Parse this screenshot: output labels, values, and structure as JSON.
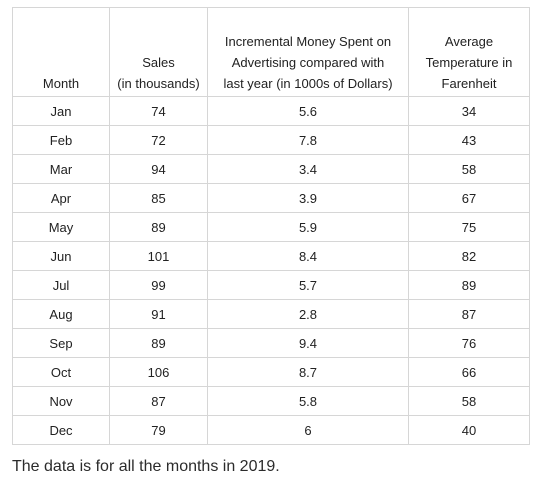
{
  "table": {
    "headers": [
      [
        "Month"
      ],
      [
        "Sales",
        "(in thousands)"
      ],
      [
        "Incremental Money Spent on",
        "Advertising compared with",
        "last year (in 1000s of Dollars)"
      ],
      [
        "Average",
        "Temperature in",
        "Farenheit"
      ]
    ],
    "rows": [
      [
        "Jan",
        "74",
        "5.6",
        "34"
      ],
      [
        "Feb",
        "72",
        "7.8",
        "43"
      ],
      [
        "Mar",
        "94",
        "3.4",
        "58"
      ],
      [
        "Apr",
        "85",
        "3.9",
        "67"
      ],
      [
        "May",
        "89",
        "5.9",
        "75"
      ],
      [
        "Jun",
        "101",
        "8.4",
        "82"
      ],
      [
        "Jul",
        "99",
        "5.7",
        "89"
      ],
      [
        "Aug",
        "91",
        "2.8",
        "87"
      ],
      [
        "Sep",
        "89",
        "9.4",
        "76"
      ],
      [
        "Oct",
        "106",
        "8.7",
        "66"
      ],
      [
        "Nov",
        "87",
        "5.8",
        "58"
      ],
      [
        "Dec",
        "79",
        "6",
        "40"
      ]
    ]
  },
  "caption": "The data is for all the months in 2019."
}
